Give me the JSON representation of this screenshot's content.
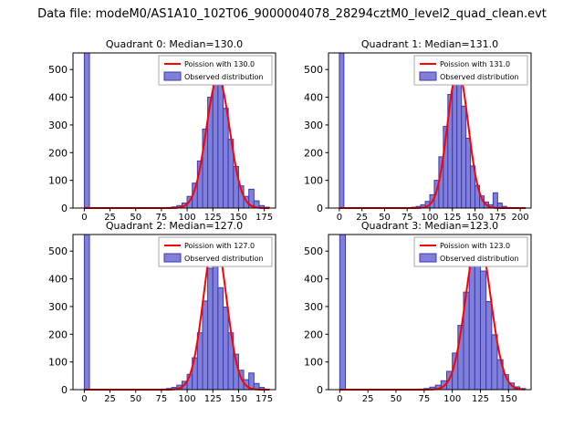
{
  "figure": {
    "title": "Data file: modeM0/AS1A10_102T06_9000004078_28294cztM0_level2_quad_clean.evt"
  },
  "colors": {
    "bar_fill": "#8080d8",
    "bar_edge": "#3a3ab0",
    "curve": "#ff0000",
    "axis": "#000000",
    "legend_border": "#aaaaaa",
    "legend_bg": "#ffffff"
  },
  "chart_data": [
    {
      "type": "bar",
      "subtype": "histogram-with-fit",
      "title": "Quadrant 0: Median=130.0",
      "legend": [
        "Poission with 130.0",
        "Observed distribution"
      ],
      "bin_start": 0,
      "bin_width": 5,
      "counts": [
        1000,
        0,
        0,
        0,
        0,
        0,
        0,
        0,
        0,
        0,
        0,
        0,
        0,
        0,
        0,
        0,
        2,
        4,
        9,
        18,
        42,
        90,
        170,
        285,
        400,
        478,
        452,
        360,
        248,
        150,
        80,
        42,
        68,
        26,
        9,
        3
      ],
      "poisson": {
        "mean": 130.0,
        "peak": 470
      },
      "xlim": [
        -11,
        186
      ],
      "xticks": [
        0,
        25,
        50,
        75,
        100,
        125,
        150,
        175
      ],
      "ylim": [
        0,
        560
      ],
      "yticks": [
        0,
        100,
        200,
        300,
        400,
        500
      ]
    },
    {
      "type": "bar",
      "subtype": "histogram-with-fit",
      "title": "Quadrant 1: Median=131.0",
      "legend": [
        "Poission with 131.0",
        "Observed distribution"
      ],
      "bin_start": 0,
      "bin_width": 5,
      "counts": [
        1000,
        0,
        0,
        0,
        0,
        0,
        0,
        0,
        0,
        0,
        0,
        0,
        0,
        0,
        0,
        1,
        3,
        6,
        12,
        24,
        48,
        100,
        185,
        295,
        410,
        482,
        458,
        368,
        252,
        152,
        82,
        44,
        22,
        12,
        55,
        18,
        6,
        2,
        1,
        0,
        0
      ],
      "poisson": {
        "mean": 131.0,
        "peak": 500
      },
      "xlim": [
        -12,
        212
      ],
      "xticks": [
        0,
        25,
        50,
        75,
        100,
        125,
        150,
        175,
        200
      ],
      "ylim": [
        0,
        560
      ],
      "yticks": [
        0,
        100,
        200,
        300,
        400,
        500
      ]
    },
    {
      "type": "bar",
      "subtype": "histogram-with-fit",
      "title": "Quadrant 2: Median=127.0",
      "legend": [
        "Poission with 127.0",
        "Observed distribution"
      ],
      "bin_start": 0,
      "bin_width": 5,
      "counts": [
        1000,
        0,
        0,
        0,
        0,
        0,
        0,
        0,
        0,
        0,
        0,
        0,
        0,
        0,
        0,
        2,
        4,
        8,
        16,
        30,
        55,
        115,
        205,
        320,
        438,
        475,
        368,
        298,
        205,
        128,
        70,
        36,
        60,
        22,
        8,
        2
      ],
      "poisson": {
        "mean": 127.0,
        "peak": 545
      },
      "xlim": [
        -11,
        186
      ],
      "xticks": [
        0,
        25,
        50,
        75,
        100,
        125,
        150,
        175
      ],
      "ylim": [
        0,
        560
      ],
      "yticks": [
        0,
        100,
        200,
        300,
        400,
        500
      ]
    },
    {
      "type": "bar",
      "subtype": "histogram-with-fit",
      "title": "Quadrant 3: Median=123.0",
      "legend": [
        "Poission with 123.0",
        "Observed distribution"
      ],
      "bin_start": 0,
      "bin_width": 5,
      "counts": [
        1000,
        0,
        0,
        0,
        0,
        0,
        0,
        0,
        0,
        0,
        0,
        0,
        0,
        0,
        2,
        4,
        9,
        16,
        32,
        66,
        132,
        232,
        352,
        452,
        498,
        428,
        318,
        198,
        108,
        54,
        24,
        10,
        4
      ],
      "poisson": {
        "mean": 123.0,
        "peak": 550
      },
      "xlim": [
        -10,
        170
      ],
      "xticks": [
        0,
        25,
        50,
        75,
        100,
        125,
        150
      ],
      "ylim": [
        0,
        560
      ],
      "yticks": [
        0,
        100,
        200,
        300,
        400,
        500
      ]
    }
  ]
}
